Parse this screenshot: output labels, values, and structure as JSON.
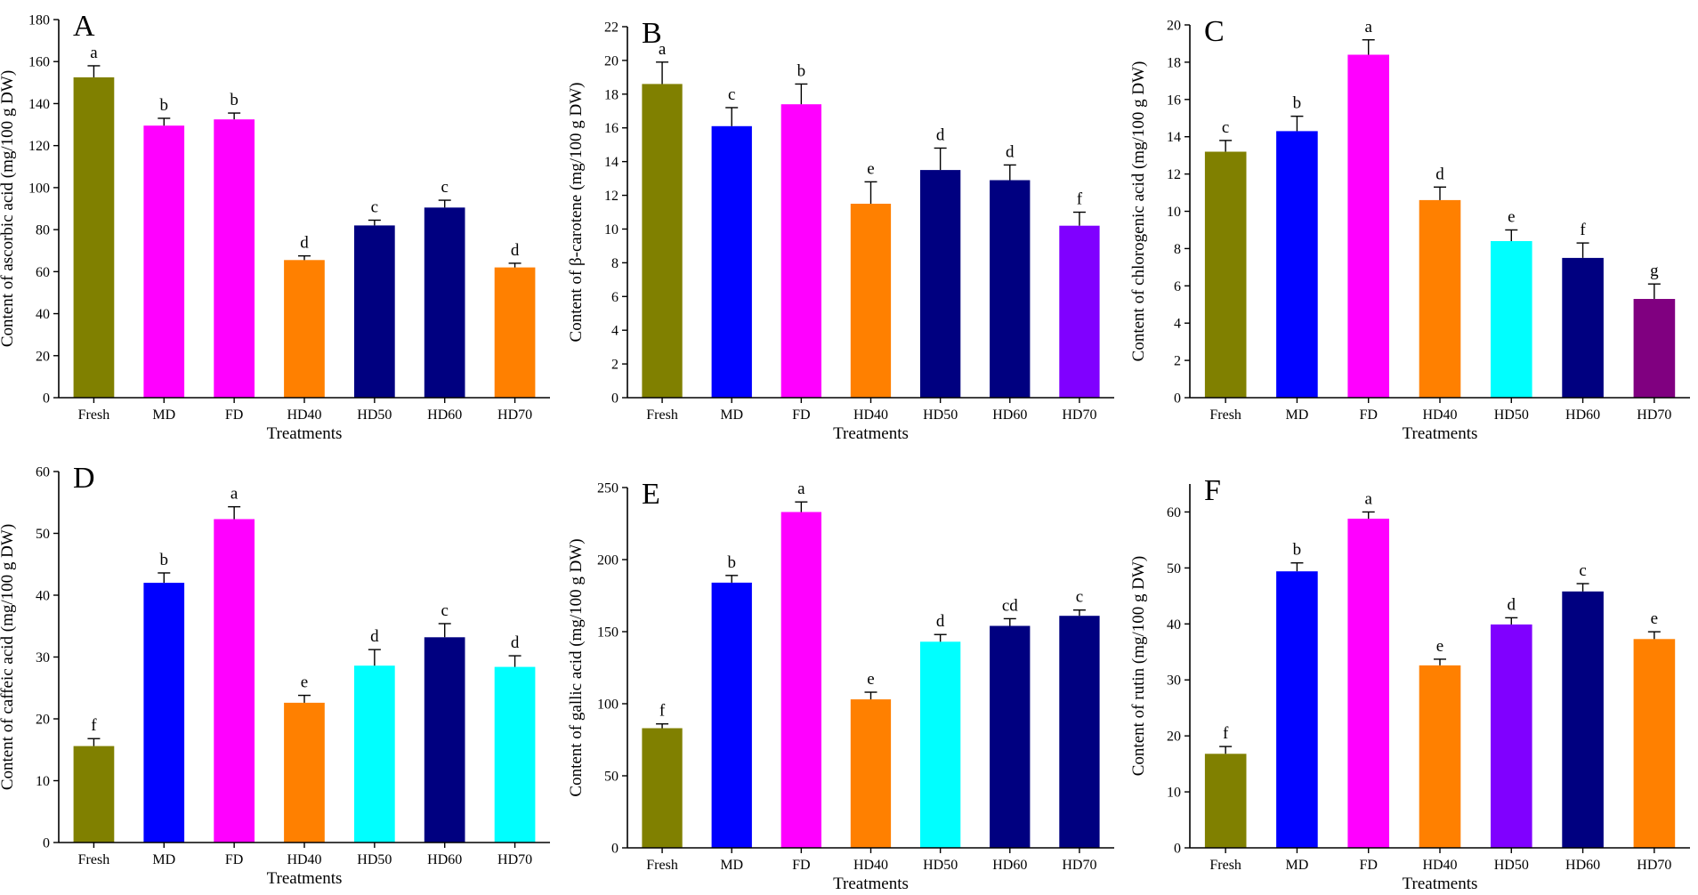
{
  "chart_data": [
    {
      "type": "bar",
      "panel": "A",
      "title": "",
      "xlabel": "Treatments",
      "ylabel": "Content of ascorbic acid (mg/100 g DW)",
      "categories": [
        "Fresh",
        "MD",
        "FD",
        "HD40",
        "HD50",
        "HD60",
        "HD70"
      ],
      "values": [
        152.5,
        129.5,
        132.5,
        65.5,
        82.0,
        90.5,
        62.0
      ],
      "errors": [
        5.5,
        3.5,
        3.0,
        2.0,
        2.5,
        3.5,
        2.0
      ],
      "letters": [
        "a",
        "b",
        "b",
        "d",
        "c",
        "c",
        "d"
      ],
      "colors": [
        "#808000",
        "#ff00ff",
        "#ff00ff",
        "#ff8000",
        "#000080",
        "#000080",
        "#ff8000"
      ],
      "ylim": [
        0,
        180
      ],
      "yticks": [
        0,
        20,
        40,
        60,
        80,
        100,
        120,
        140,
        160,
        180
      ]
    },
    {
      "type": "bar",
      "panel": "B",
      "title": "",
      "xlabel": "Treatments",
      "ylabel": "Content of β-carotene (mg/100 g DW)",
      "categories": [
        "Fresh",
        "MD",
        "FD",
        "HD40",
        "HD50",
        "HD60",
        "HD70"
      ],
      "values": [
        18.6,
        16.1,
        17.4,
        11.5,
        13.5,
        12.9,
        10.2
      ],
      "errors": [
        1.3,
        1.1,
        1.2,
        1.3,
        1.3,
        0.9,
        0.8
      ],
      "letters": [
        "a",
        "c",
        "b",
        "e",
        "d",
        "d",
        "f"
      ],
      "colors": [
        "#808000",
        "#0000ff",
        "#ff00ff",
        "#ff8000",
        "#000080",
        "#000080",
        "#8000ff"
      ],
      "ylim": [
        0,
        22
      ],
      "yticks": [
        0,
        2,
        4,
        6,
        8,
        10,
        12,
        14,
        16,
        18,
        20,
        22
      ]
    },
    {
      "type": "bar",
      "panel": "C",
      "title": "",
      "xlabel": "Treatments",
      "ylabel": "Content of chlorogenic acid (mg/100 g DW)",
      "categories": [
        "Fresh",
        "MD",
        "FD",
        "HD40",
        "HD50",
        "HD60",
        "HD70"
      ],
      "values": [
        13.2,
        14.3,
        18.4,
        10.6,
        8.4,
        7.5,
        5.3
      ],
      "errors": [
        0.6,
        0.8,
        0.8,
        0.7,
        0.6,
        0.8,
        0.8
      ],
      "letters": [
        "c",
        "b",
        "a",
        "d",
        "e",
        "f",
        "g"
      ],
      "colors": [
        "#808000",
        "#0000ff",
        "#ff00ff",
        "#ff8000",
        "#00ffff",
        "#000080",
        "#800080"
      ],
      "ylim": [
        0,
        20
      ],
      "yticks": [
        0,
        2,
        4,
        6,
        8,
        10,
        12,
        14,
        16,
        18,
        20
      ]
    },
    {
      "type": "bar",
      "panel": "D",
      "title": "",
      "xlabel": "Treatments",
      "ylabel": "Content of caffeic acid (mg/100 g DW)",
      "categories": [
        "Fresh",
        "MD",
        "FD",
        "HD40",
        "HD50",
        "HD60",
        "HD70"
      ],
      "values": [
        15.6,
        42.0,
        52.3,
        22.6,
        28.6,
        33.2,
        28.4
      ],
      "errors": [
        1.2,
        1.6,
        2.0,
        1.2,
        2.6,
        2.2,
        1.8
      ],
      "letters": [
        "f",
        "b",
        "a",
        "e",
        "d",
        "c",
        "d"
      ],
      "colors": [
        "#808000",
        "#0000ff",
        "#ff00ff",
        "#ff8000",
        "#00ffff",
        "#000080",
        "#00ffff"
      ],
      "ylim": [
        0,
        60
      ],
      "yticks": [
        0,
        10,
        20,
        30,
        40,
        50,
        60
      ]
    },
    {
      "type": "bar",
      "panel": "E",
      "title": "",
      "xlabel": "Treatments",
      "ylabel": "Content of gallic acid (mg/100 g DW)",
      "categories": [
        "Fresh",
        "MD",
        "FD",
        "HD40",
        "HD50",
        "HD60",
        "HD70"
      ],
      "values": [
        83.0,
        184.0,
        233.0,
        103.0,
        143.0,
        154.0,
        161.0
      ],
      "errors": [
        3.0,
        5.0,
        7.0,
        5.0,
        5.0,
        5.0,
        4.0
      ],
      "letters": [
        "f",
        "b",
        "a",
        "e",
        "d",
        "cd",
        "c"
      ],
      "colors": [
        "#808000",
        "#0000ff",
        "#ff00ff",
        "#ff8000",
        "#00ffff",
        "#000080",
        "#000080"
      ],
      "ylim": [
        0,
        250
      ],
      "yticks": [
        0,
        50,
        100,
        150,
        200,
        250
      ]
    },
    {
      "type": "bar",
      "panel": "F",
      "title": "",
      "xlabel": "Treatments",
      "ylabel": "Content of rutin (mg/100 g DW)",
      "categories": [
        "Fresh",
        "MD",
        "FD",
        "HD40",
        "HD50",
        "HD60",
        "HD70"
      ],
      "values": [
        16.8,
        49.4,
        58.8,
        32.6,
        39.9,
        45.8,
        37.3
      ],
      "errors": [
        1.3,
        1.5,
        1.2,
        1.1,
        1.2,
        1.4,
        1.3
      ],
      "letters": [
        "f",
        "b",
        "a",
        "e",
        "d",
        "c",
        "e"
      ],
      "colors": [
        "#808000",
        "#0000ff",
        "#ff00ff",
        "#ff8000",
        "#8000ff",
        "#000080",
        "#ff8000"
      ],
      "ylim": [
        0,
        65
      ],
      "yticks": [
        0,
        10,
        20,
        30,
        40,
        50,
        60
      ]
    }
  ]
}
